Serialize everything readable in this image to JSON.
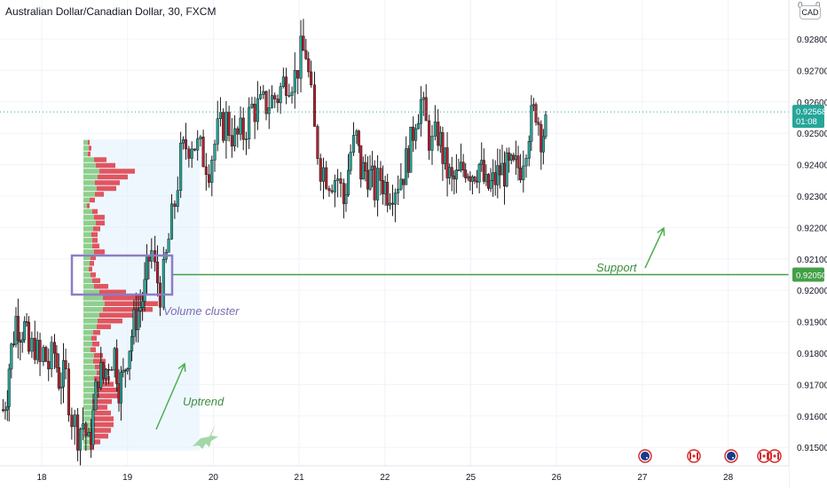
{
  "header": {
    "title": "Australian Dollar/Canadian Dollar, 30, FXCM",
    "currency": "CAD",
    "zero_left": "0",
    "zero_right": "0"
  },
  "price_badge": {
    "price": "0.92568",
    "countdown": "01:08"
  },
  "support_badge": "0.92050",
  "annotations": {
    "support": "Support",
    "volume_cluster": "Volume cluster",
    "uptrend": "Uptrend"
  },
  "colors": {
    "bull": "#26a69a",
    "bear": "#b2222f",
    "support_line": "#43a047",
    "cluster_box": "#8e7cc3",
    "arrow_green": "#4caf50",
    "vp_bull": "#8fcf8c",
    "vp_bear": "#e05560",
    "vp_bg": "#e3f2fd"
  },
  "chart_data": {
    "type": "candlestick",
    "title": "Australian Dollar/Canadian Dollar, 30, FXCM",
    "ylim": [
      0.9146,
      0.9296
    ],
    "y_ticks": [
      "0.92800",
      "0.92700",
      "0.92600",
      "0.92500",
      "0.92400",
      "0.92300",
      "0.92200",
      "0.92100",
      "0.92000",
      "0.91900",
      "0.91800",
      "0.91700",
      "0.91600",
      "0.91500"
    ],
    "x_ticks": [
      "18",
      "19",
      "20",
      "21",
      "22",
      "25",
      "26",
      "27",
      "28"
    ],
    "grid": true,
    "last_price": 0.92568,
    "support_level": 0.9205,
    "close_path": [
      [
        17.55,
        0.9162
      ],
      [
        17.6,
        0.9168
      ],
      [
        17.62,
        0.9176
      ],
      [
        17.7,
        0.9191
      ],
      [
        17.75,
        0.9188
      ],
      [
        17.8,
        0.9188
      ],
      [
        17.85,
        0.918
      ],
      [
        17.92,
        0.9183
      ],
      [
        17.98,
        0.9176
      ],
      [
        18.02,
        0.918
      ],
      [
        18.08,
        0.9176
      ],
      [
        18.15,
        0.918
      ],
      [
        18.2,
        0.9172
      ],
      [
        18.28,
        0.9172
      ],
      [
        18.35,
        0.916
      ],
      [
        18.42,
        0.9155
      ],
      [
        18.48,
        0.9158
      ],
      [
        18.55,
        0.915
      ],
      [
        18.6,
        0.916
      ],
      [
        18.66,
        0.9174
      ],
      [
        18.72,
        0.9172
      ],
      [
        18.78,
        0.9178
      ],
      [
        18.85,
        0.918
      ],
      [
        18.9,
        0.917
      ],
      [
        18.95,
        0.9172
      ],
      [
        19.0,
        0.918
      ],
      [
        19.05,
        0.9186
      ],
      [
        19.1,
        0.9192
      ],
      [
        19.15,
        0.9195
      ],
      [
        19.2,
        0.92
      ],
      [
        19.25,
        0.921
      ],
      [
        19.28,
        0.9212
      ],
      [
        19.32,
        0.9206
      ],
      [
        19.38,
        0.92
      ],
      [
        19.42,
        0.9204
      ],
      [
        19.48,
        0.9216
      ],
      [
        19.55,
        0.9228
      ],
      [
        19.62,
        0.9242
      ],
      [
        19.68,
        0.9246
      ],
      [
        19.75,
        0.9248
      ],
      [
        19.85,
        0.9244
      ],
      [
        19.95,
        0.924
      ],
      [
        20.05,
        0.925
      ],
      [
        20.15,
        0.9254
      ],
      [
        20.25,
        0.9248
      ],
      [
        20.35,
        0.925
      ],
      [
        20.45,
        0.9258
      ],
      [
        20.55,
        0.9258
      ],
      [
        20.65,
        0.926
      ],
      [
        20.75,
        0.9262
      ],
      [
        20.85,
        0.9268
      ],
      [
        20.95,
        0.9268
      ],
      [
        21.02,
        0.9275
      ],
      [
        21.08,
        0.9276
      ],
      [
        21.14,
        0.926
      ],
      [
        21.18,
        0.925
      ],
      [
        21.25,
        0.924
      ],
      [
        21.35,
        0.9236
      ],
      [
        21.45,
        0.9236
      ],
      [
        21.52,
        0.9228
      ],
      [
        21.6,
        0.9244
      ],
      [
        21.67,
        0.9248
      ],
      [
        21.72,
        0.9238
      ],
      [
        21.8,
        0.9238
      ],
      [
        21.88,
        0.9232
      ],
      [
        21.95,
        0.9236
      ],
      [
        22.03,
        0.9232
      ],
      [
        22.12,
        0.9234
      ],
      [
        22.22,
        0.9238
      ],
      [
        22.3,
        0.9246
      ],
      [
        22.36,
        0.9256
      ],
      [
        22.42,
        0.926
      ],
      [
        22.48,
        0.9252
      ],
      [
        22.55,
        0.9246
      ],
      [
        22.62,
        0.925
      ],
      [
        22.7,
        0.924
      ],
      [
        22.78,
        0.9234
      ],
      [
        22.86,
        0.9236
      ],
      [
        22.94,
        0.924
      ],
      [
        23.02,
        0.9238
      ],
      [
        23.1,
        0.924
      ],
      [
        23.18,
        0.9232
      ],
      [
        23.26,
        0.9234
      ],
      [
        23.34,
        0.9238
      ],
      [
        23.42,
        0.9238
      ],
      [
        23.5,
        0.9238
      ],
      [
        23.58,
        0.924
      ],
      [
        23.68,
        0.9252
      ],
      [
        23.76,
        0.9258
      ],
      [
        23.82,
        0.925
      ],
      [
        23.9,
        0.9252
      ]
    ],
    "volume_profile": {
      "price_from": 0.9149,
      "price_to": 0.9248,
      "bull_widths": [
        5,
        6,
        5,
        12,
        14,
        18,
        16,
        13,
        15,
        13,
        7,
        4,
        10,
        12,
        14,
        11,
        9,
        10,
        10,
        12,
        8,
        7,
        6,
        8,
        10,
        12,
        18,
        22,
        24,
        22,
        18,
        16,
        15,
        11,
        9,
        10,
        8,
        12,
        11,
        13,
        15,
        12,
        12,
        14,
        13,
        10,
        11,
        13,
        12,
        10,
        9,
        10,
        9,
        7
      ],
      "bear_widths": [
        2,
        3,
        3,
        14,
        22,
        40,
        34,
        28,
        22,
        10,
        6,
        3,
        6,
        12,
        10,
        8,
        7,
        6,
        8,
        12,
        6,
        5,
        4,
        6,
        9,
        16,
        30,
        48,
        60,
        56,
        44,
        28,
        16,
        8,
        6,
        8,
        6,
        10,
        14,
        12,
        14,
        18,
        22,
        26,
        28,
        22,
        16,
        18,
        22,
        24,
        22,
        18,
        10,
        5
      ]
    }
  }
}
